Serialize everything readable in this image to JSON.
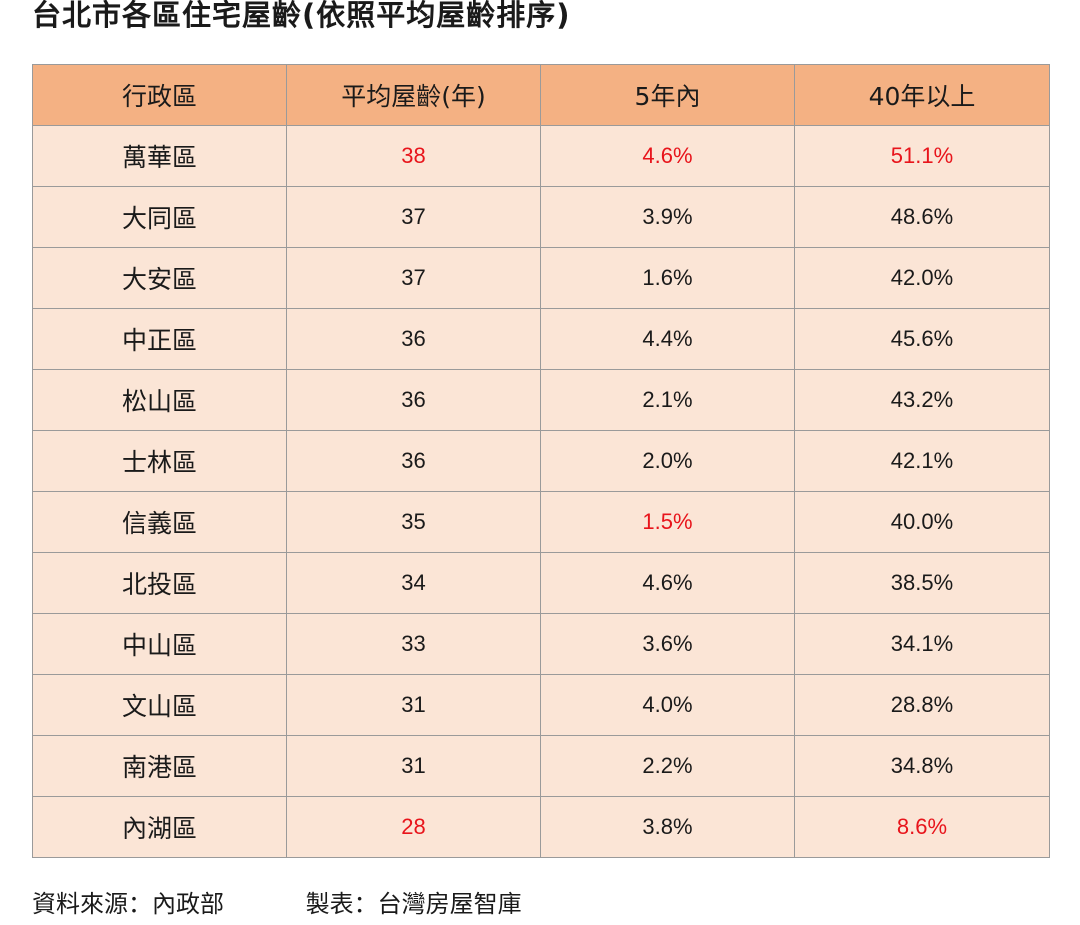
{
  "title": "台北市各區住宅屋齡(依照平均屋齡排序)",
  "table": {
    "headers": [
      "行政區",
      "平均屋齡(年)",
      "5年內",
      "40年以上"
    ],
    "rows": [
      {
        "district": "萬華區",
        "avg_age": "38",
        "within_5y": "4.6%",
        "over_40y": "51.1%"
      },
      {
        "district": "大同區",
        "avg_age": "37",
        "within_5y": "3.9%",
        "over_40y": "48.6%"
      },
      {
        "district": "大安區",
        "avg_age": "37",
        "within_5y": "1.6%",
        "over_40y": "42.0%"
      },
      {
        "district": "中正區",
        "avg_age": "36",
        "within_5y": "4.4%",
        "over_40y": "45.6%"
      },
      {
        "district": "松山區",
        "avg_age": "36",
        "within_5y": "2.1%",
        "over_40y": "43.2%"
      },
      {
        "district": "士林區",
        "avg_age": "36",
        "within_5y": "2.0%",
        "over_40y": "42.1%"
      },
      {
        "district": "信義區",
        "avg_age": "35",
        "within_5y": "1.5%",
        "over_40y": "40.0%"
      },
      {
        "district": "北投區",
        "avg_age": "34",
        "within_5y": "4.6%",
        "over_40y": "38.5%"
      },
      {
        "district": "中山區",
        "avg_age": "33",
        "within_5y": "3.6%",
        "over_40y": "34.1%"
      },
      {
        "district": "文山區",
        "avg_age": "31",
        "within_5y": "4.0%",
        "over_40y": "28.8%"
      },
      {
        "district": "南港區",
        "avg_age": "31",
        "within_5y": "2.2%",
        "over_40y": "34.8%"
      },
      {
        "district": "內湖區",
        "avg_age": "28",
        "within_5y": "3.8%",
        "over_40y": "8.6%"
      }
    ]
  },
  "footer": {
    "source": "資料來源：內政部",
    "maker": "製表：台灣房屋智庫"
  },
  "colors": {
    "header_bg": "#f4b183",
    "cell_bg": "#fbe5d6",
    "highlight_text": "#e8141b",
    "border": "#9a9a9a"
  }
}
